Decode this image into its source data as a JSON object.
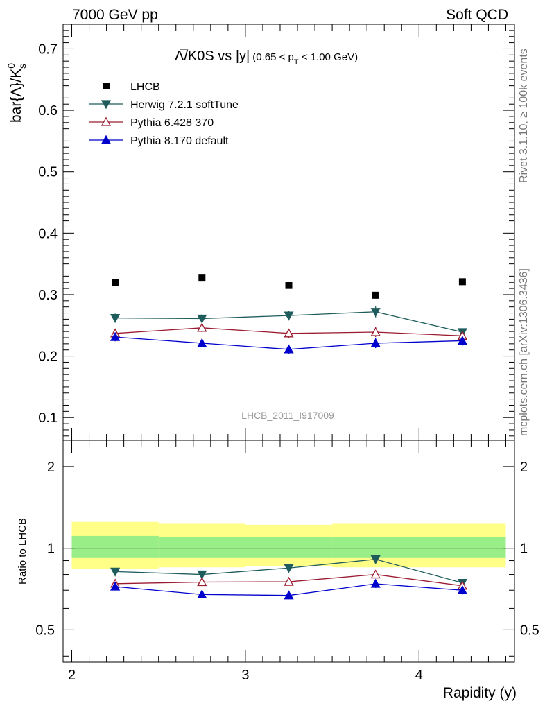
{
  "header": {
    "left": "7000 GeV pp",
    "right": "Soft QCD"
  },
  "side_labels": {
    "rivet": "Rivet 3.1.10, ≥ 100k events",
    "source": "mcplots.cern.ch [arXiv:1306.3436]"
  },
  "watermark": "LHCB_2011_I917009",
  "chart_data": {
    "type": "line",
    "title": "Λ̅/K0S vs |y|",
    "title_main": "Λ̅/K0S vs |y|",
    "title_sub": "(0.65 < p",
    "title_sub_T": "T",
    "title_sub_tail": " < 1.00 GeV)",
    "xlabel": "Rapidity (y)",
    "ylabel_main": "bar{Λ}/K",
    "ylabel_sup": "0",
    "ylabel_sub": "s",
    "ylabel_ratio": "Ratio to LHCB",
    "xlim": [
      1.95,
      4.55
    ],
    "ylim_main": [
      0.063,
      0.74
    ],
    "ylim_ratio": [
      0.38,
      2.5
    ],
    "x_ticks": [
      "2",
      "3",
      "4"
    ],
    "x_tick_values": [
      2,
      3,
      4
    ],
    "y_ticks_main": [
      "0.1",
      "0.2",
      "0.3",
      "0.4",
      "0.5",
      "0.6",
      "0.7"
    ],
    "y_tick_values_main": [
      0.1,
      0.2,
      0.3,
      0.4,
      0.5,
      0.6,
      0.7
    ],
    "y_ticks_ratio": [
      "0.5",
      "1",
      "2"
    ],
    "y_tick_values_ratio": [
      0.5,
      1,
      2
    ],
    "bins": [
      [
        2.0,
        2.5
      ],
      [
        2.5,
        3.0
      ],
      [
        3.0,
        3.5
      ],
      [
        3.5,
        4.0
      ],
      [
        4.0,
        4.5
      ]
    ],
    "x": [
      2.25,
      2.75,
      3.25,
      3.75,
      4.25
    ],
    "uncertainty_band": {
      "inner_low": [
        0.92,
        0.92,
        0.92,
        0.92,
        0.92
      ],
      "inner_high": [
        1.11,
        1.1,
        1.1,
        1.1,
        1.1
      ],
      "outer_low": [
        0.84,
        0.85,
        0.86,
        0.85,
        0.85
      ],
      "outer_high": [
        1.25,
        1.23,
        1.22,
        1.23,
        1.23
      ]
    },
    "series": [
      {
        "name": "LHCB",
        "role": "data",
        "color": "#000000",
        "marker": "square",
        "values": [
          0.32,
          0.328,
          0.315,
          0.299,
          0.321
        ],
        "errors": [
          0,
          0,
          0,
          0,
          0
        ],
        "ratio": [
          1,
          1,
          1,
          1,
          1
        ]
      },
      {
        "name": "Herwig 7.2.1 softTune",
        "role": "mc",
        "color": "#1f5c5c",
        "marker": "triangle-down",
        "values": [
          0.262,
          0.261,
          0.266,
          0.272,
          0.239
        ],
        "errors": [
          0.007,
          0.007,
          0.008,
          0.009,
          0.006
        ],
        "ratio": [
          0.82,
          0.8,
          0.845,
          0.91,
          0.745
        ],
        "ratio_errors": [
          0.02,
          0.02,
          0.025,
          0.03,
          0.02
        ]
      },
      {
        "name": "Pythia 6.428 370",
        "role": "mc",
        "color": "#9b1c31",
        "marker": "triangle-up-open",
        "values": [
          0.237,
          0.246,
          0.237,
          0.239,
          0.233
        ],
        "errors": [
          0.007,
          0.007,
          0.007,
          0.008,
          0.006
        ],
        "ratio": [
          0.74,
          0.75,
          0.752,
          0.8,
          0.727
        ],
        "ratio_errors": [
          0.02,
          0.02,
          0.02,
          0.025,
          0.02
        ]
      },
      {
        "name": "Pythia 8.170 default",
        "role": "mc",
        "color": "#0000cc",
        "marker": "triangle-up",
        "values": [
          0.231,
          0.221,
          0.211,
          0.221,
          0.225
        ],
        "errors": [
          0.007,
          0.007,
          0.007,
          0.008,
          0.008
        ],
        "ratio": [
          0.722,
          0.675,
          0.67,
          0.739,
          0.7
        ],
        "ratio_errors": [
          0.02,
          0.02,
          0.02,
          0.025,
          0.025
        ]
      }
    ]
  }
}
